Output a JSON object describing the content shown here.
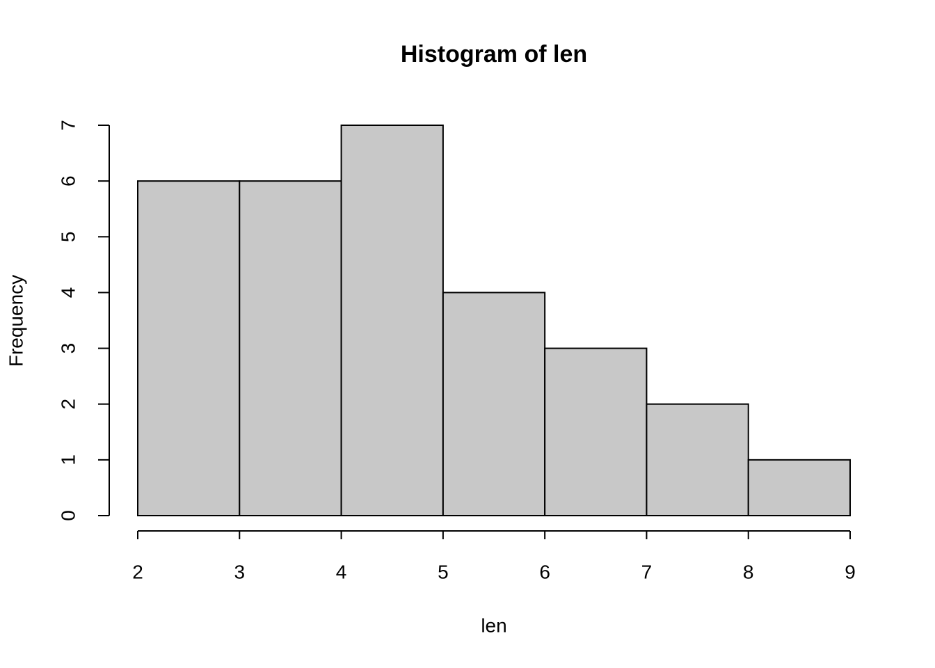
{
  "chart_data": {
    "type": "histogram",
    "title": "Histogram of len",
    "x_label": "len",
    "y_label": "Frequency",
    "bins": [
      2,
      3,
      4,
      5,
      6,
      7,
      8,
      9
    ],
    "values": [
      6,
      6,
      7,
      4,
      3,
      2,
      1
    ],
    "color": "#c8c8c8",
    "xlim": [
      2,
      9
    ],
    "xticks": [
      2,
      3,
      4,
      5,
      6,
      7,
      8,
      9
    ],
    "ylim": [
      0,
      7
    ],
    "yticks": [
      0,
      1,
      2,
      3,
      4,
      5,
      6,
      7
    ]
  }
}
